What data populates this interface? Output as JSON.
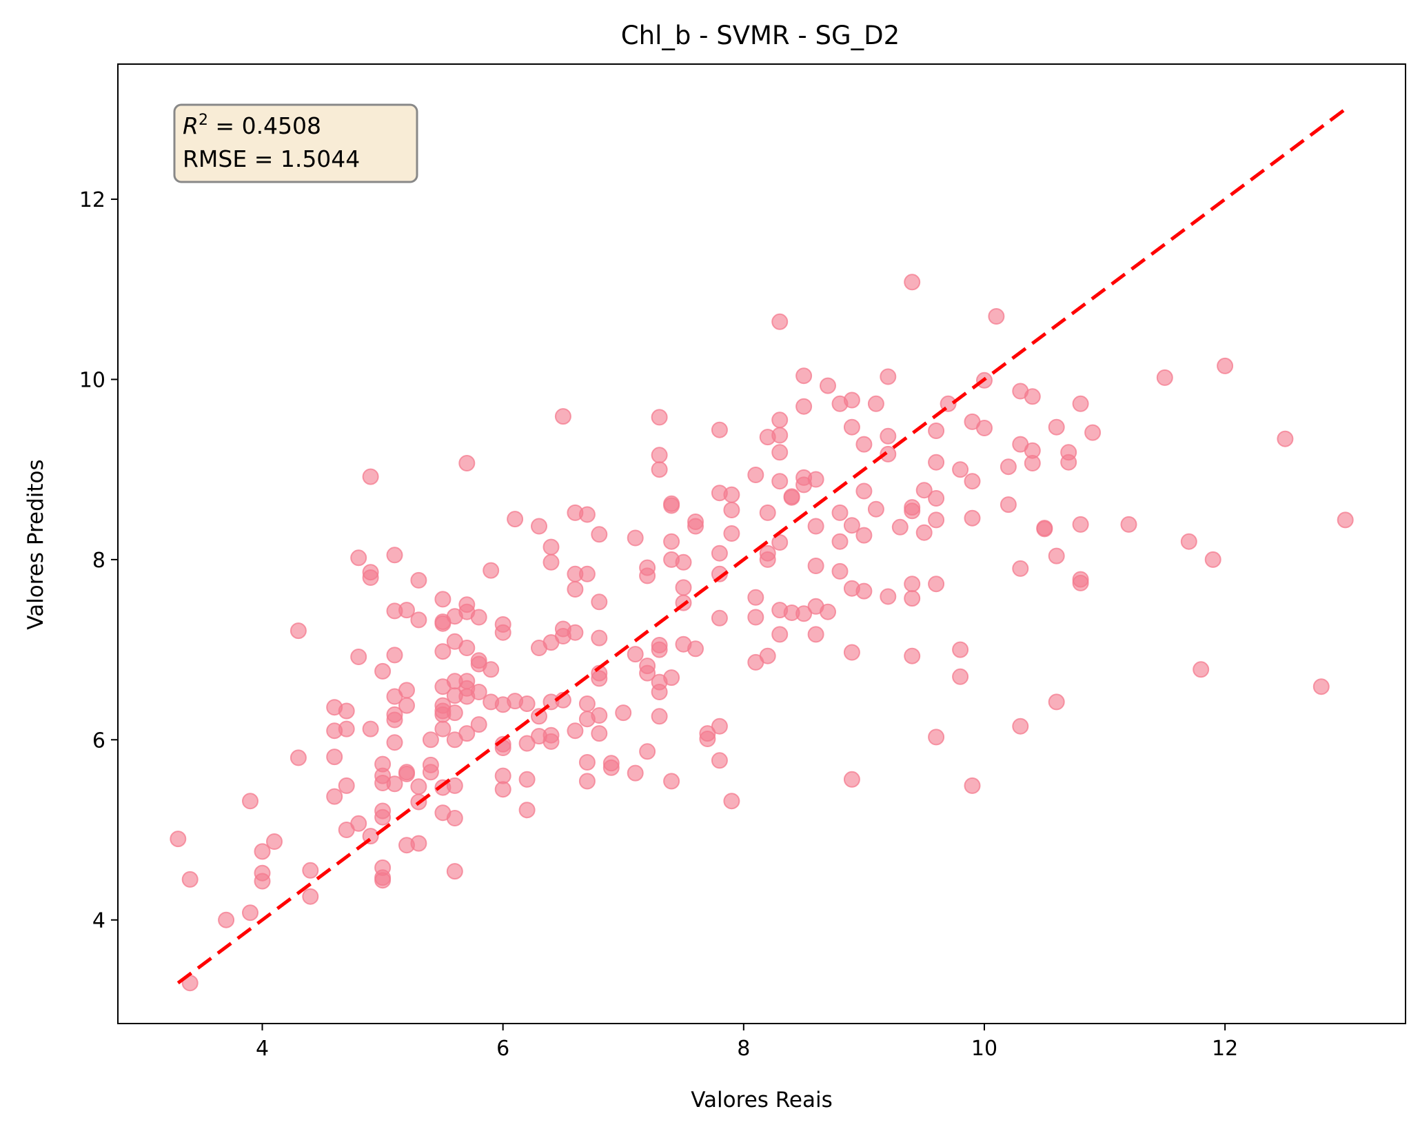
{
  "chart_data": {
    "type": "scatter",
    "title": "Chl_b - SVMR - SG_D2",
    "xlabel": "Valores Reais",
    "ylabel": "Valores Preditos",
    "xlim": [
      2.8,
      13.5
    ],
    "ylim": [
      2.85,
      13.5
    ],
    "xticks": [
      4,
      6,
      8,
      10,
      12
    ],
    "yticks": [
      4,
      6,
      8,
      10,
      12
    ],
    "grid": false,
    "point_color": "#f47a8e",
    "line_color": "#ff0000",
    "reference_line": {
      "style": "dashed",
      "from": [
        3.3,
        3.3
      ],
      "to": [
        13.0,
        13.0
      ]
    },
    "annotation": {
      "r2_label": "R",
      "r2_sup": "2",
      "r2_value": " = 0.4508",
      "rmse": "RMSE = 1.5044",
      "box_fill": "#f8ecd6",
      "box_edge": "#888888"
    },
    "points": [
      [
        3.3,
        4.9
      ],
      [
        3.4,
        4.45
      ],
      [
        3.4,
        3.3
      ],
      [
        3.7,
        4.0
      ],
      [
        3.9,
        5.32
      ],
      [
        3.9,
        4.08
      ],
      [
        4.0,
        4.76
      ],
      [
        4.0,
        4.52
      ],
      [
        4.0,
        4.43
      ],
      [
        4.1,
        4.87
      ],
      [
        4.3,
        7.21
      ],
      [
        4.3,
        5.8
      ],
      [
        4.4,
        4.55
      ],
      [
        4.4,
        4.26
      ],
      [
        4.6,
        6.36
      ],
      [
        4.6,
        6.1
      ],
      [
        4.6,
        5.81
      ],
      [
        4.6,
        5.37
      ],
      [
        4.7,
        6.32
      ],
      [
        4.7,
        6.12
      ],
      [
        4.7,
        5.49
      ],
      [
        4.7,
        5.0
      ],
      [
        4.8,
        8.02
      ],
      [
        4.8,
        6.92
      ],
      [
        4.8,
        5.07
      ],
      [
        4.9,
        8.92
      ],
      [
        4.9,
        7.86
      ],
      [
        4.9,
        7.8
      ],
      [
        4.9,
        6.12
      ],
      [
        4.9,
        4.93
      ],
      [
        5.0,
        6.76
      ],
      [
        5.0,
        5.73
      ],
      [
        5.0,
        5.6
      ],
      [
        5.0,
        5.52
      ],
      [
        5.0,
        5.21
      ],
      [
        5.0,
        5.14
      ],
      [
        5.0,
        4.58
      ],
      [
        5.0,
        4.47
      ],
      [
        5.0,
        4.44
      ],
      [
        5.1,
        8.05
      ],
      [
        5.1,
        7.43
      ],
      [
        5.1,
        6.94
      ],
      [
        5.1,
        6.48
      ],
      [
        5.1,
        6.28
      ],
      [
        5.1,
        6.22
      ],
      [
        5.1,
        5.97
      ],
      [
        5.1,
        5.51
      ],
      [
        5.2,
        7.44
      ],
      [
        5.2,
        6.55
      ],
      [
        5.2,
        6.38
      ],
      [
        5.2,
        5.64
      ],
      [
        5.2,
        5.62
      ],
      [
        5.2,
        4.83
      ],
      [
        5.3,
        7.77
      ],
      [
        5.3,
        7.33
      ],
      [
        5.3,
        5.48
      ],
      [
        5.3,
        5.31
      ],
      [
        5.3,
        4.85
      ],
      [
        5.4,
        6.0
      ],
      [
        5.4,
        5.72
      ],
      [
        5.4,
        5.64
      ],
      [
        5.5,
        7.56
      ],
      [
        5.5,
        7.31
      ],
      [
        5.5,
        7.29
      ],
      [
        5.5,
        6.98
      ],
      [
        5.5,
        6.59
      ],
      [
        5.5,
        6.38
      ],
      [
        5.5,
        6.32
      ],
      [
        5.5,
        6.28
      ],
      [
        5.5,
        6.12
      ],
      [
        5.5,
        5.47
      ],
      [
        5.5,
        5.19
      ],
      [
        5.6,
        7.37
      ],
      [
        5.6,
        7.09
      ],
      [
        5.6,
        6.65
      ],
      [
        5.6,
        6.49
      ],
      [
        5.6,
        6.3
      ],
      [
        5.6,
        6.0
      ],
      [
        5.6,
        5.49
      ],
      [
        5.6,
        5.13
      ],
      [
        5.6,
        4.54
      ],
      [
        5.7,
        9.07
      ],
      [
        5.7,
        7.5
      ],
      [
        5.7,
        7.42
      ],
      [
        5.7,
        7.02
      ],
      [
        5.7,
        6.65
      ],
      [
        5.7,
        6.57
      ],
      [
        5.7,
        6.48
      ],
      [
        5.7,
        6.07
      ],
      [
        5.8,
        7.36
      ],
      [
        5.8,
        6.88
      ],
      [
        5.8,
        6.84
      ],
      [
        5.8,
        6.53
      ],
      [
        5.8,
        6.17
      ],
      [
        5.9,
        7.88
      ],
      [
        5.9,
        6.78
      ],
      [
        5.9,
        6.42
      ],
      [
        6.0,
        7.28
      ],
      [
        6.0,
        7.19
      ],
      [
        6.0,
        6.39
      ],
      [
        6.0,
        5.95
      ],
      [
        6.0,
        5.91
      ],
      [
        6.0,
        5.6
      ],
      [
        6.0,
        5.45
      ],
      [
        6.1,
        8.45
      ],
      [
        6.1,
        6.43
      ],
      [
        6.2,
        6.4
      ],
      [
        6.2,
        5.96
      ],
      [
        6.2,
        5.56
      ],
      [
        6.2,
        5.22
      ],
      [
        6.3,
        8.37
      ],
      [
        6.3,
        7.02
      ],
      [
        6.3,
        6.26
      ],
      [
        6.3,
        6.04
      ],
      [
        6.4,
        8.14
      ],
      [
        6.4,
        7.97
      ],
      [
        6.4,
        7.08
      ],
      [
        6.4,
        6.42
      ],
      [
        6.4,
        6.05
      ],
      [
        6.4,
        5.98
      ],
      [
        6.5,
        9.59
      ],
      [
        6.5,
        7.23
      ],
      [
        6.5,
        7.15
      ],
      [
        6.5,
        6.44
      ],
      [
        6.6,
        8.52
      ],
      [
        6.6,
        7.84
      ],
      [
        6.6,
        7.67
      ],
      [
        6.6,
        7.19
      ],
      [
        6.6,
        6.1
      ],
      [
        6.7,
        8.5
      ],
      [
        6.7,
        7.84
      ],
      [
        6.7,
        6.4
      ],
      [
        6.7,
        6.23
      ],
      [
        6.7,
        5.75
      ],
      [
        6.7,
        5.54
      ],
      [
        6.8,
        8.28
      ],
      [
        6.8,
        7.53
      ],
      [
        6.8,
        7.13
      ],
      [
        6.8,
        6.74
      ],
      [
        6.8,
        6.68
      ],
      [
        6.8,
        6.27
      ],
      [
        6.8,
        6.07
      ],
      [
        6.9,
        5.74
      ],
      [
        6.9,
        5.69
      ],
      [
        7.0,
        6.3
      ],
      [
        7.1,
        8.24
      ],
      [
        7.1,
        6.95
      ],
      [
        7.1,
        5.63
      ],
      [
        7.2,
        7.91
      ],
      [
        7.2,
        7.82
      ],
      [
        7.2,
        6.82
      ],
      [
        7.2,
        6.74
      ],
      [
        7.2,
        5.87
      ],
      [
        7.3,
        9.58
      ],
      [
        7.3,
        9.16
      ],
      [
        7.3,
        9.0
      ],
      [
        7.3,
        7.05
      ],
      [
        7.3,
        7.0
      ],
      [
        7.3,
        6.64
      ],
      [
        7.3,
        6.53
      ],
      [
        7.3,
        6.26
      ],
      [
        7.4,
        8.62
      ],
      [
        7.4,
        8.6
      ],
      [
        7.4,
        8.2
      ],
      [
        7.4,
        8.0
      ],
      [
        7.4,
        6.69
      ],
      [
        7.4,
        5.54
      ],
      [
        7.5,
        7.97
      ],
      [
        7.5,
        7.69
      ],
      [
        7.5,
        7.52
      ],
      [
        7.5,
        7.06
      ],
      [
        7.6,
        8.42
      ],
      [
        7.6,
        8.37
      ],
      [
        7.6,
        7.01
      ],
      [
        7.7,
        6.07
      ],
      [
        7.7,
        6.01
      ],
      [
        7.8,
        9.44
      ],
      [
        7.8,
        8.74
      ],
      [
        7.8,
        8.07
      ],
      [
        7.8,
        7.84
      ],
      [
        7.8,
        7.35
      ],
      [
        7.8,
        6.15
      ],
      [
        7.8,
        5.77
      ],
      [
        7.9,
        8.72
      ],
      [
        7.9,
        8.55
      ],
      [
        7.9,
        8.29
      ],
      [
        7.9,
        5.32
      ],
      [
        8.1,
        8.94
      ],
      [
        8.1,
        7.58
      ],
      [
        8.1,
        7.36
      ],
      [
        8.1,
        6.86
      ],
      [
        8.2,
        9.36
      ],
      [
        8.2,
        8.52
      ],
      [
        8.2,
        8.07
      ],
      [
        8.2,
        8.0
      ],
      [
        8.2,
        6.93
      ],
      [
        8.3,
        10.64
      ],
      [
        8.3,
        9.55
      ],
      [
        8.3,
        9.38
      ],
      [
        8.3,
        9.19
      ],
      [
        8.3,
        8.87
      ],
      [
        8.3,
        8.19
      ],
      [
        8.3,
        7.44
      ],
      [
        8.3,
        7.17
      ],
      [
        8.4,
        8.7
      ],
      [
        8.4,
        8.69
      ],
      [
        8.4,
        7.41
      ],
      [
        8.5,
        10.04
      ],
      [
        8.5,
        9.7
      ],
      [
        8.5,
        8.91
      ],
      [
        8.5,
        8.83
      ],
      [
        8.5,
        7.4
      ],
      [
        8.6,
        8.89
      ],
      [
        8.6,
        8.37
      ],
      [
        8.6,
        7.93
      ],
      [
        8.6,
        7.48
      ],
      [
        8.6,
        7.17
      ],
      [
        8.7,
        9.93
      ],
      [
        8.7,
        7.42
      ],
      [
        8.8,
        9.73
      ],
      [
        8.8,
        8.52
      ],
      [
        8.8,
        8.2
      ],
      [
        8.8,
        7.87
      ],
      [
        8.9,
        9.77
      ],
      [
        8.9,
        9.47
      ],
      [
        8.9,
        8.38
      ],
      [
        8.9,
        7.68
      ],
      [
        8.9,
        6.97
      ],
      [
        8.9,
        5.56
      ],
      [
        9.0,
        9.28
      ],
      [
        9.0,
        8.76
      ],
      [
        9.0,
        8.27
      ],
      [
        9.0,
        7.65
      ],
      [
        9.1,
        9.73
      ],
      [
        9.1,
        8.56
      ],
      [
        9.2,
        10.03
      ],
      [
        9.2,
        9.37
      ],
      [
        9.2,
        9.17
      ],
      [
        9.2,
        7.59
      ],
      [
        9.3,
        8.36
      ],
      [
        9.4,
        11.08
      ],
      [
        9.4,
        8.58
      ],
      [
        9.4,
        8.54
      ],
      [
        9.4,
        7.73
      ],
      [
        9.4,
        7.57
      ],
      [
        9.4,
        6.93
      ],
      [
        9.5,
        8.77
      ],
      [
        9.5,
        8.3
      ],
      [
        9.6,
        9.43
      ],
      [
        9.6,
        9.08
      ],
      [
        9.6,
        8.68
      ],
      [
        9.6,
        8.44
      ],
      [
        9.6,
        7.73
      ],
      [
        9.6,
        6.03
      ],
      [
        9.7,
        9.73
      ],
      [
        9.8,
        9.0
      ],
      [
        9.8,
        7.0
      ],
      [
        9.8,
        6.7
      ],
      [
        9.9,
        9.53
      ],
      [
        9.9,
        8.87
      ],
      [
        9.9,
        8.46
      ],
      [
        9.9,
        5.49
      ],
      [
        10.0,
        9.99
      ],
      [
        10.0,
        9.46
      ],
      [
        10.1,
        10.7
      ],
      [
        10.2,
        9.03
      ],
      [
        10.2,
        8.61
      ],
      [
        10.3,
        9.87
      ],
      [
        10.3,
        9.28
      ],
      [
        10.3,
        7.9
      ],
      [
        10.3,
        6.15
      ],
      [
        10.4,
        9.81
      ],
      [
        10.4,
        9.21
      ],
      [
        10.4,
        9.07
      ],
      [
        10.5,
        8.35
      ],
      [
        10.5,
        8.34
      ],
      [
        10.6,
        9.47
      ],
      [
        10.6,
        8.04
      ],
      [
        10.6,
        6.42
      ],
      [
        10.7,
        9.19
      ],
      [
        10.7,
        9.08
      ],
      [
        10.8,
        9.73
      ],
      [
        10.8,
        8.39
      ],
      [
        10.8,
        7.78
      ],
      [
        10.8,
        7.74
      ],
      [
        10.9,
        9.41
      ],
      [
        11.2,
        8.39
      ],
      [
        11.5,
        10.02
      ],
      [
        11.7,
        8.2
      ],
      [
        11.8,
        6.78
      ],
      [
        11.9,
        8.0
      ],
      [
        12.0,
        10.15
      ],
      [
        12.5,
        9.34
      ],
      [
        12.8,
        6.59
      ],
      [
        13.0,
        8.44
      ]
    ]
  }
}
